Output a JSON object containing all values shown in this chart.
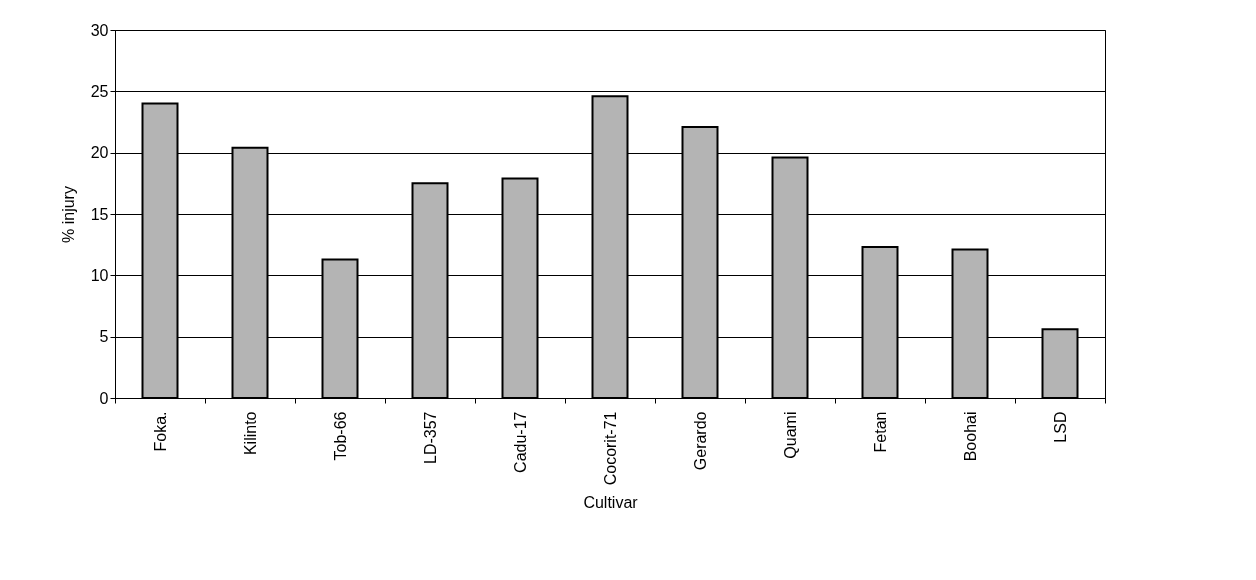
{
  "chart_data": {
    "type": "bar",
    "xlabel": "Cultivar",
    "ylabel": "% injury",
    "categories": [
      "Foka.",
      "Kilinto",
      "Tob-66",
      "LD-357",
      "Cadu-17",
      "Cocorit-71",
      "Gerardo",
      "Quami",
      "Fetan",
      "Boohai",
      "LSD"
    ],
    "values": [
      24,
      20.4,
      11.3,
      17.5,
      17.9,
      24.6,
      22.1,
      19.6,
      12.3,
      12.1,
      5.6
    ],
    "color": "#b4b4b4",
    "ylim": [
      0,
      30
    ],
    "yticks": [
      0,
      5,
      10,
      15,
      20,
      25,
      30
    ],
    "grid": "y"
  }
}
